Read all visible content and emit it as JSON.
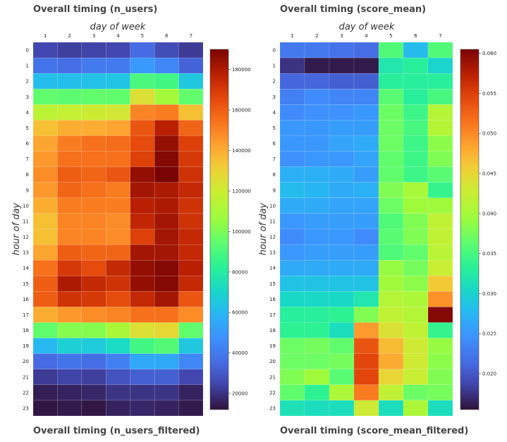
{
  "titles": {
    "top_left": "Overall timing (n_users)",
    "top_right": "Overall timing (score_mean)",
    "bottom_left": "Overall timing (n_users_filtered)",
    "bottom_right": "Overall timing (score_mean_filtered)"
  },
  "chart_data": [
    {
      "type": "heatmap",
      "title": "Overall timing (n_users)",
      "xlabel": "day of week",
      "ylabel": "hour of day",
      "x": [
        "1",
        "2",
        "3",
        "4",
        "5",
        "6",
        "7"
      ],
      "y": [
        "0",
        "1",
        "2",
        "3",
        "4",
        "5",
        "6",
        "7",
        "8",
        "9",
        "10",
        "11",
        "12",
        "13",
        "14",
        "15",
        "16",
        "17",
        "18",
        "19",
        "20",
        "21",
        "22",
        "23"
      ],
      "colorscale": "turbo",
      "zlim": [
        12000,
        190000
      ],
      "colorbar_ticks": [
        20000,
        40000,
        60000,
        80000,
        100000,
        120000,
        140000,
        160000,
        180000
      ],
      "z": [
        [
          25000,
          23000,
          24000,
          25000,
          35000,
          27000,
          22000
        ],
        [
          38000,
          36000,
          40000,
          40000,
          50000,
          44000,
          33000
        ],
        [
          62000,
          62000,
          63000,
          64000,
          90000,
          88000,
          65000
        ],
        [
          95000,
          94000,
          95000,
          95000,
          125000,
          108000,
          95000
        ],
        [
          115000,
          118000,
          120000,
          122000,
          150000,
          152000,
          135000
        ],
        [
          135000,
          140000,
          140000,
          142000,
          162000,
          178000,
          158000
        ],
        [
          142000,
          152000,
          155000,
          156000,
          165000,
          185000,
          168000
        ],
        [
          145000,
          155000,
          155000,
          155000,
          168000,
          188000,
          170000
        ],
        [
          148000,
          160000,
          158000,
          162000,
          185000,
          190000,
          172000
        ],
        [
          145000,
          158000,
          155000,
          152000,
          182000,
          180000,
          175000
        ],
        [
          140000,
          152000,
          152000,
          152000,
          178000,
          180000,
          172000
        ],
        [
          135000,
          150000,
          150000,
          148000,
          176000,
          182000,
          172000
        ],
        [
          135000,
          150000,
          150000,
          148000,
          168000,
          182000,
          175000
        ],
        [
          142000,
          160000,
          158000,
          158000,
          182000,
          182000,
          175000
        ],
        [
          155000,
          170000,
          165000,
          175000,
          185000,
          188000,
          178000
        ],
        [
          160000,
          180000,
          175000,
          172000,
          185000,
          188000,
          175000
        ],
        [
          160000,
          172000,
          170000,
          165000,
          175000,
          182000,
          162000
        ],
        [
          140000,
          145000,
          148000,
          150000,
          155000,
          155000,
          148000
        ],
        [
          95000,
          102000,
          102000,
          110000,
          125000,
          128000,
          95000
        ],
        [
          60000,
          68000,
          66000,
          72000,
          88000,
          92000,
          65000
        ],
        [
          35000,
          38000,
          36000,
          42000,
          55000,
          55000,
          44000
        ],
        [
          22000,
          24000,
          23000,
          28000,
          32000,
          32000,
          25000
        ],
        [
          15000,
          16000,
          17000,
          20000,
          20000,
          20000,
          16000
        ],
        [
          13000,
          14000,
          13000,
          16000,
          17000,
          16000,
          14000
        ]
      ]
    },
    {
      "type": "heatmap",
      "title": "Overall timing (score_mean)",
      "xlabel": "day of week",
      "ylabel": "hour of day",
      "x": [
        "1",
        "2",
        "3",
        "4",
        "5",
        "6",
        "7"
      ],
      "y": [
        "0",
        "1",
        "2",
        "3",
        "4",
        "5",
        "6",
        "7",
        "8",
        "9",
        "10",
        "11",
        "12",
        "13",
        "14",
        "15",
        "16",
        "17",
        "18",
        "19",
        "20",
        "21",
        "22",
        "23"
      ],
      "colorscale": "turbo",
      "zlim": [
        0.0155,
        0.0605
      ],
      "colorbar_ticks": [
        0.02,
        0.025,
        0.03,
        0.035,
        0.04,
        0.045,
        0.05,
        0.055,
        0.06
      ],
      "z": [
        [
          0.0225,
          0.0225,
          0.022,
          0.0215,
          0.0355,
          0.028,
          0.0355
        ],
        [
          0.0175,
          0.016,
          0.016,
          0.016,
          0.032,
          0.033,
          0.03
        ],
        [
          0.021,
          0.021,
          0.0205,
          0.0205,
          0.033,
          0.033,
          0.033
        ],
        [
          0.023,
          0.024,
          0.0235,
          0.0235,
          0.036,
          0.033,
          0.035
        ],
        [
          0.024,
          0.0245,
          0.0245,
          0.025,
          0.037,
          0.0345,
          0.041
        ],
        [
          0.025,
          0.025,
          0.0255,
          0.0255,
          0.037,
          0.035,
          0.041
        ],
        [
          0.025,
          0.025,
          0.026,
          0.0265,
          0.037,
          0.0345,
          0.0385
        ],
        [
          0.0245,
          0.025,
          0.025,
          0.026,
          0.0365,
          0.0345,
          0.038
        ],
        [
          0.027,
          0.027,
          0.0265,
          0.0255,
          0.0365,
          0.0345,
          0.036
        ],
        [
          0.028,
          0.0275,
          0.0265,
          0.027,
          0.038,
          0.04,
          0.034
        ],
        [
          0.0265,
          0.0265,
          0.026,
          0.026,
          0.037,
          0.0395,
          0.0395
        ],
        [
          0.025,
          0.0255,
          0.0255,
          0.0255,
          0.0355,
          0.038,
          0.042
        ],
        [
          0.024,
          0.025,
          0.025,
          0.024,
          0.036,
          0.038,
          0.042
        ],
        [
          0.025,
          0.0255,
          0.0255,
          0.0255,
          0.0355,
          0.0365,
          0.0415
        ],
        [
          0.0265,
          0.0265,
          0.0265,
          0.0265,
          0.039,
          0.0375,
          0.0425
        ],
        [
          0.0285,
          0.0285,
          0.0285,
          0.0285,
          0.0395,
          0.0385,
          0.046
        ],
        [
          0.0305,
          0.0305,
          0.0305,
          0.032,
          0.041,
          0.0405,
          0.0495
        ],
        [
          0.033,
          0.033,
          0.0335,
          0.038,
          0.042,
          0.041,
          0.06
        ],
        [
          0.0335,
          0.0335,
          0.031,
          0.049,
          0.044,
          0.042,
          0.034
        ],
        [
          0.037,
          0.0375,
          0.0365,
          0.0535,
          0.047,
          0.043,
          0.039
        ],
        [
          0.037,
          0.037,
          0.0375,
          0.0545,
          0.048,
          0.043,
          0.0385
        ],
        [
          0.038,
          0.0395,
          0.036,
          0.0545,
          0.045,
          0.0425,
          0.038
        ],
        [
          0.0365,
          0.0335,
          0.0405,
          0.051,
          0.042,
          0.037,
          0.0375
        ],
        [
          0.0315,
          0.031,
          0.031,
          0.043,
          0.031,
          0.0405,
          0.031
        ]
      ]
    }
  ]
}
